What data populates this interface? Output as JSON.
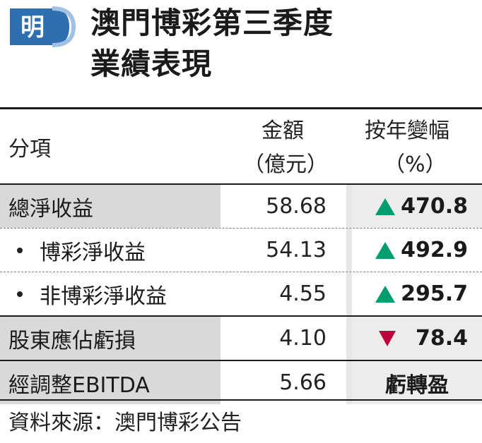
{
  "logo": {
    "char": "明",
    "color": "#2e6fb0"
  },
  "title": {
    "line1": "澳門博彩第三季度",
    "line2": "業績表現"
  },
  "header": {
    "item": "分項",
    "amount_line1": "金額",
    "amount_line2": "（億元）",
    "change_line1": "按年變幅",
    "change_line2": "（%）"
  },
  "rows": [
    {
      "label": "總淨收益",
      "bullet": false,
      "amount": "58.68",
      "direction": "up",
      "change": "470.8"
    },
    {
      "label": "博彩淨收益",
      "bullet": true,
      "amount": "54.13",
      "direction": "up",
      "change": "492.9"
    },
    {
      "label": "非博彩淨收益",
      "bullet": true,
      "amount": "4.55",
      "direction": "up",
      "change": "295.7"
    },
    {
      "label": "股東應佔虧損",
      "bullet": false,
      "amount": "4.10",
      "direction": "down",
      "change": "78.4"
    },
    {
      "label": "經調整EBITDA",
      "bullet": false,
      "amount": "5.66",
      "direction": "none",
      "change": "虧轉盈"
    }
  ],
  "colors": {
    "up": "#009d6e",
    "down": "#c0003c",
    "shade": "#d9d9d9"
  },
  "source": "資料來源：澳門博彩公告"
}
